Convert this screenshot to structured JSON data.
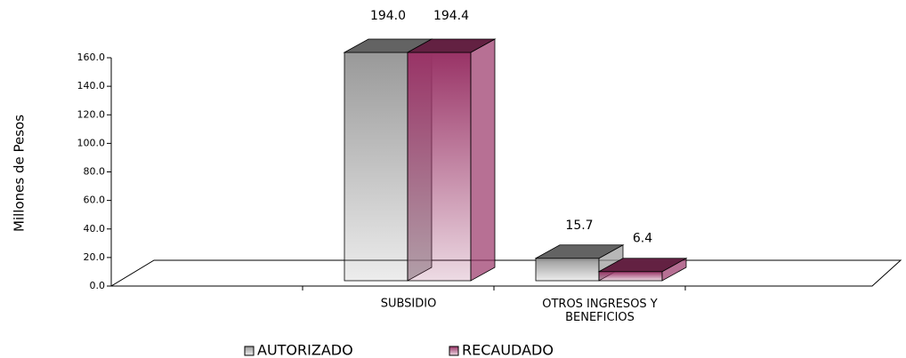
{
  "chart_data": {
    "type": "bar3d",
    "ylabel": "Millones de Pesos",
    "categories": [
      "SUBSIDIO",
      "OTROS INGRESOS Y BENEFICIOS"
    ],
    "series": [
      {
        "name": "AUTORIZADO",
        "color": "#999999",
        "values": [
          194.0,
          15.7
        ],
        "value_labels": [
          "194.0",
          "15.7"
        ]
      },
      {
        "name": "RECAUDADO",
        "color": "#993366",
        "values": [
          194.4,
          6.4
        ],
        "value_labels": [
          "194.4",
          "6.4"
        ]
      }
    ],
    "ylim": [
      0,
      160
    ],
    "yticks": [
      {
        "value": 0,
        "label": "0.0"
      },
      {
        "value": 20,
        "label": "20.0"
      },
      {
        "value": 40,
        "label": "40.0"
      },
      {
        "value": 60,
        "label": "60.0"
      },
      {
        "value": 80,
        "label": "80.0"
      },
      {
        "value": 100,
        "label": "100.0"
      },
      {
        "value": 120,
        "label": "120.0"
      },
      {
        "value": 140,
        "label": "140.0"
      },
      {
        "value": 160,
        "label": "160.0"
      }
    ],
    "legend": "bottom"
  }
}
